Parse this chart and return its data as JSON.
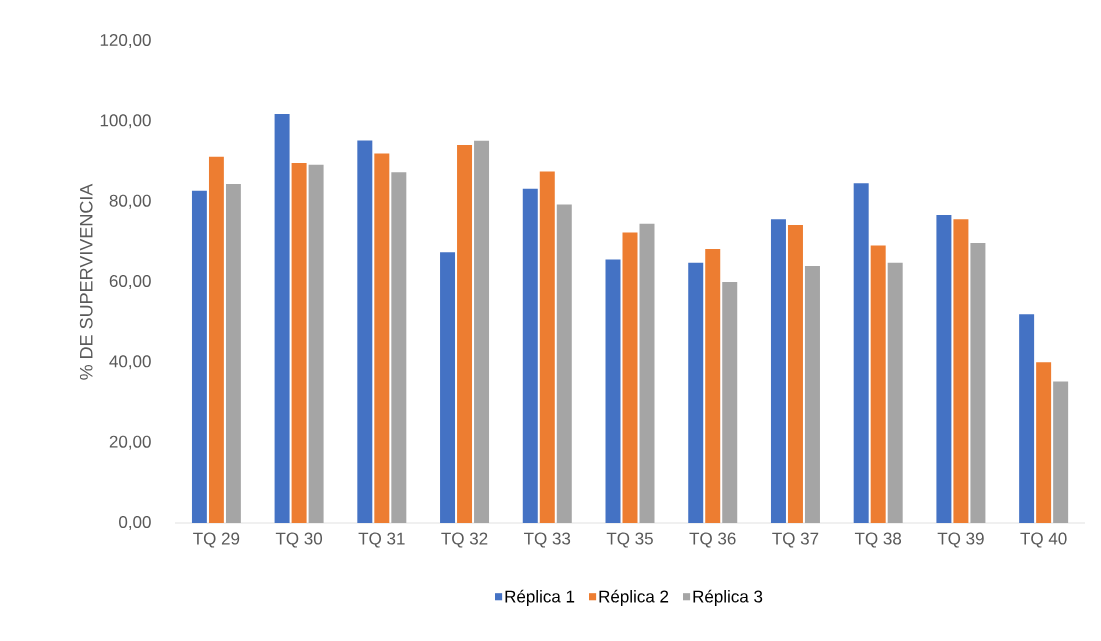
{
  "chart_data": {
    "type": "bar",
    "ylabel": "% DE SUPERVIVENCIA",
    "categories": [
      "TQ 29",
      "TQ 30",
      "TQ 31",
      "TQ 32",
      "TQ 33",
      "TQ 35",
      "TQ 36",
      "TQ 37",
      "TQ 38",
      "TQ 39",
      "TQ 40"
    ],
    "series": [
      {
        "name": "Réplica 1",
        "color": "#4472c4",
        "values": [
          82.7,
          101.8,
          95.2,
          67.4,
          83.2,
          65.6,
          64.8,
          75.6,
          84.6,
          76.7,
          52.0
        ]
      },
      {
        "name": "Réplica 2",
        "color": "#ed7d31",
        "values": [
          91.2,
          89.6,
          92.0,
          94.1,
          87.5,
          72.3,
          68.2,
          74.2,
          69.1,
          75.6,
          40.0
        ]
      },
      {
        "name": "Réplica 3",
        "color": "#a5a5a5",
        "values": [
          84.4,
          89.2,
          87.3,
          95.2,
          79.3,
          74.5,
          60.0,
          64.0,
          64.8,
          69.7,
          35.2
        ]
      }
    ],
    "ylim": [
      0,
      120
    ],
    "yticks": [
      {
        "value": 0,
        "label": "0,00"
      },
      {
        "value": 20,
        "label": "20,00"
      },
      {
        "value": 40,
        "label": "40,00"
      },
      {
        "value": 60,
        "label": "60,00"
      },
      {
        "value": 80,
        "label": "80,00"
      },
      {
        "value": 100,
        "label": "100,00"
      },
      {
        "value": 120,
        "label": "120,00"
      }
    ],
    "grid": false,
    "legend": "bottom"
  }
}
